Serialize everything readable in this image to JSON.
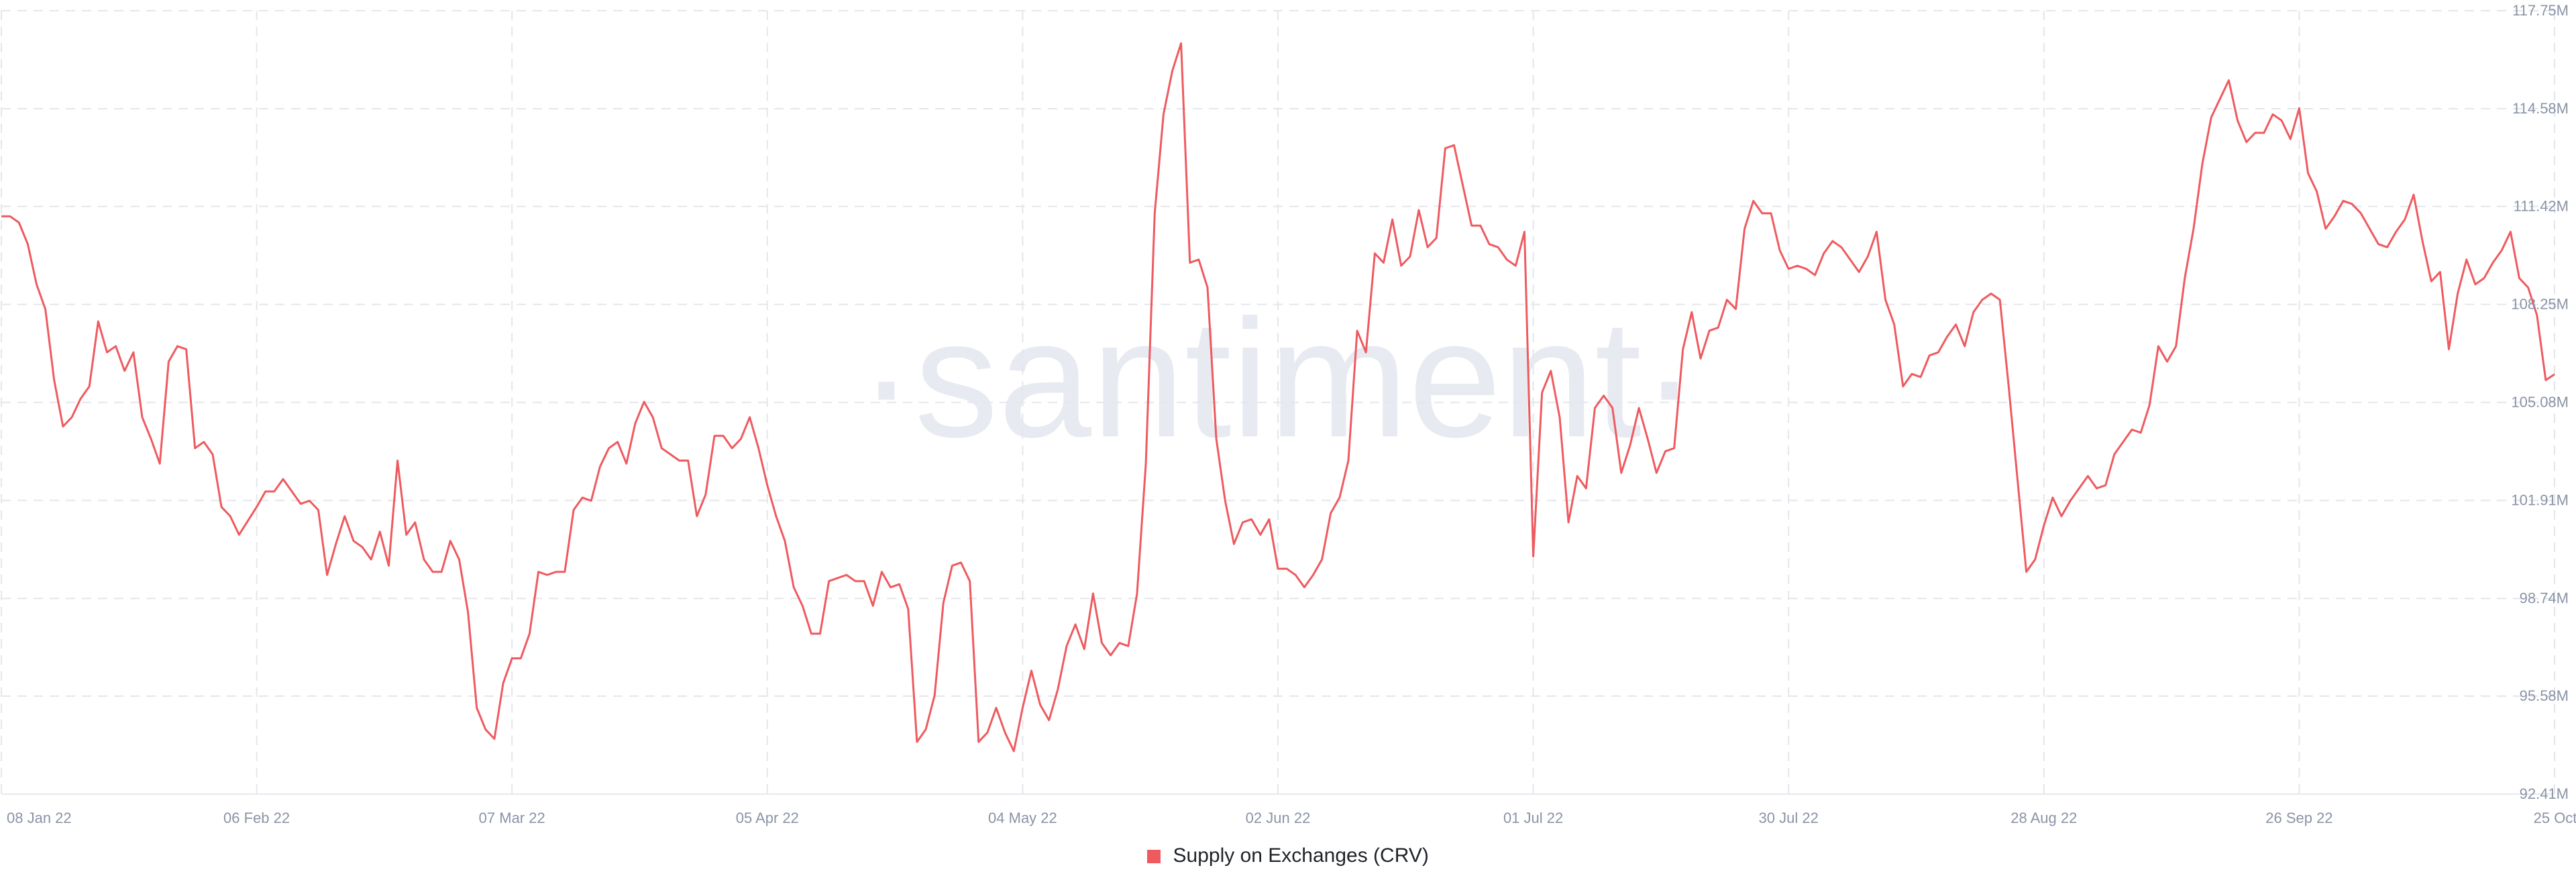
{
  "colors": {
    "series": "#ee5a5f",
    "grid": "#e3e6ec",
    "axis_text": "#8a93a6",
    "watermark": "#e8eaf2"
  },
  "watermark": "·santiment·",
  "chart_data": {
    "type": "line",
    "title": "",
    "xlabel": "",
    "ylabel": "",
    "ylim": [
      92.41,
      117.75
    ],
    "y_ticks": [
      92.41,
      95.58,
      98.74,
      101.91,
      105.08,
      108.25,
      111.42,
      114.58,
      117.75
    ],
    "y_tick_labels": [
      "92.41M",
      "95.58M",
      "98.74M",
      "101.91M",
      "105.08M",
      "108.25M",
      "111.42M",
      "114.58M",
      "117.75M"
    ],
    "x_start": "2022-01-08",
    "x_end": "2022-10-25",
    "x_ticks": [
      "2022-01-08",
      "2022-02-06",
      "2022-03-07",
      "2022-04-05",
      "2022-05-04",
      "2022-06-02",
      "2022-07-01",
      "2022-07-30",
      "2022-08-28",
      "2022-09-26",
      "2022-10-25"
    ],
    "x_tick_labels": [
      "08 Jan 22",
      "06 Feb 22",
      "07 Mar 22",
      "05 Apr 22",
      "04 May 22",
      "02 Jun 22",
      "01 Jul 22",
      "30 Jul 22",
      "28 Aug 22",
      "26 Sep 22",
      "25 Oct 22"
    ],
    "grid": true,
    "legend_position": "bottom-center",
    "last_value_label": "105.99M",
    "series": [
      {
        "name": "Supply on Exchanges (CRV)",
        "x": [
          "2022-01-08",
          "2022-01-09",
          "2022-01-10",
          "2022-01-11",
          "2022-01-12",
          "2022-01-13",
          "2022-01-14",
          "2022-01-15",
          "2022-01-16",
          "2022-01-17",
          "2022-01-18",
          "2022-01-19",
          "2022-01-20",
          "2022-01-21",
          "2022-01-22",
          "2022-01-23",
          "2022-01-24",
          "2022-01-25",
          "2022-01-26",
          "2022-01-27",
          "2022-01-28",
          "2022-01-29",
          "2022-01-30",
          "2022-01-31",
          "2022-02-01",
          "2022-02-02",
          "2022-02-03",
          "2022-02-04",
          "2022-02-06",
          "2022-02-07",
          "2022-02-08",
          "2022-02-09",
          "2022-02-10",
          "2022-02-11",
          "2022-02-12",
          "2022-02-13",
          "2022-02-14",
          "2022-02-15",
          "2022-02-16",
          "2022-02-17",
          "2022-02-18",
          "2022-02-19",
          "2022-02-20",
          "2022-02-21",
          "2022-02-22",
          "2022-02-23",
          "2022-02-24",
          "2022-02-25",
          "2022-02-26",
          "2022-02-27",
          "2022-02-28",
          "2022-03-01",
          "2022-03-02",
          "2022-03-03",
          "2022-03-04",
          "2022-03-05",
          "2022-03-06",
          "2022-03-07",
          "2022-03-08",
          "2022-03-09",
          "2022-03-10",
          "2022-03-11",
          "2022-03-12",
          "2022-03-13",
          "2022-03-14",
          "2022-03-15",
          "2022-03-16",
          "2022-03-17",
          "2022-03-18",
          "2022-03-19",
          "2022-03-20",
          "2022-03-21",
          "2022-03-22",
          "2022-03-23",
          "2022-03-24",
          "2022-03-25",
          "2022-03-26",
          "2022-03-27",
          "2022-03-28",
          "2022-03-29",
          "2022-03-30",
          "2022-03-31",
          "2022-04-01",
          "2022-04-02",
          "2022-04-03",
          "2022-04-04",
          "2022-04-05",
          "2022-04-06",
          "2022-04-07",
          "2022-04-08",
          "2022-04-09",
          "2022-04-10",
          "2022-04-11",
          "2022-04-12",
          "2022-04-13",
          "2022-04-14",
          "2022-04-15",
          "2022-04-16",
          "2022-04-17",
          "2022-04-18",
          "2022-04-19",
          "2022-04-20",
          "2022-04-21",
          "2022-04-22",
          "2022-04-23",
          "2022-04-24",
          "2022-04-25",
          "2022-04-26",
          "2022-04-27",
          "2022-04-28",
          "2022-04-29",
          "2022-04-30",
          "2022-05-01",
          "2022-05-02",
          "2022-05-03",
          "2022-05-04",
          "2022-05-05",
          "2022-05-06",
          "2022-05-07",
          "2022-05-08",
          "2022-05-09",
          "2022-05-10",
          "2022-05-11",
          "2022-05-12",
          "2022-05-13",
          "2022-05-14",
          "2022-05-15",
          "2022-05-16",
          "2022-05-17",
          "2022-05-18",
          "2022-05-19",
          "2022-05-20",
          "2022-05-21",
          "2022-05-22",
          "2022-05-23",
          "2022-05-24",
          "2022-05-25",
          "2022-05-26",
          "2022-05-27",
          "2022-05-28",
          "2022-05-29",
          "2022-05-30",
          "2022-05-31",
          "2022-06-01",
          "2022-06-02",
          "2022-06-03",
          "2022-06-04",
          "2022-06-05",
          "2022-06-06",
          "2022-06-07",
          "2022-06-08",
          "2022-06-09",
          "2022-06-10",
          "2022-06-11",
          "2022-06-12",
          "2022-06-13",
          "2022-06-14",
          "2022-06-15",
          "2022-06-16",
          "2022-06-17",
          "2022-06-18",
          "2022-06-19",
          "2022-06-20",
          "2022-06-21",
          "2022-06-22",
          "2022-06-23",
          "2022-06-24",
          "2022-06-25",
          "2022-06-26",
          "2022-06-27",
          "2022-06-28",
          "2022-06-29",
          "2022-06-30",
          "2022-07-01",
          "2022-07-02",
          "2022-07-03",
          "2022-07-04",
          "2022-07-05",
          "2022-07-06",
          "2022-07-07",
          "2022-07-08",
          "2022-07-09",
          "2022-07-10",
          "2022-07-11",
          "2022-07-12",
          "2022-07-13",
          "2022-07-14",
          "2022-07-15",
          "2022-07-16",
          "2022-07-17",
          "2022-07-18",
          "2022-07-19",
          "2022-07-20",
          "2022-07-21",
          "2022-07-22",
          "2022-07-23",
          "2022-07-24",
          "2022-07-25",
          "2022-07-26",
          "2022-07-27",
          "2022-07-28",
          "2022-07-29",
          "2022-07-30",
          "2022-07-31",
          "2022-08-01",
          "2022-08-02",
          "2022-08-03",
          "2022-08-04",
          "2022-08-05",
          "2022-08-06",
          "2022-08-07",
          "2022-08-08",
          "2022-08-09",
          "2022-08-10",
          "2022-08-11",
          "2022-08-12",
          "2022-08-13",
          "2022-08-14",
          "2022-08-15",
          "2022-08-16",
          "2022-08-17",
          "2022-08-18",
          "2022-08-19",
          "2022-08-20",
          "2022-08-21",
          "2022-08-22",
          "2022-08-23",
          "2022-08-24",
          "2022-08-25",
          "2022-08-26",
          "2022-08-27",
          "2022-08-28",
          "2022-08-29",
          "2022-08-30",
          "2022-08-31",
          "2022-09-01",
          "2022-09-02",
          "2022-09-03",
          "2022-09-04",
          "2022-09-05",
          "2022-09-06",
          "2022-09-07",
          "2022-09-08",
          "2022-09-09",
          "2022-09-10",
          "2022-09-11",
          "2022-09-12",
          "2022-09-13",
          "2022-09-14",
          "2022-09-15",
          "2022-09-16",
          "2022-09-17",
          "2022-09-18",
          "2022-09-19",
          "2022-09-20",
          "2022-09-21",
          "2022-09-22",
          "2022-09-23",
          "2022-09-24",
          "2022-09-25",
          "2022-09-26",
          "2022-09-27",
          "2022-09-28",
          "2022-09-29",
          "2022-09-30",
          "2022-10-01",
          "2022-10-02",
          "2022-10-03",
          "2022-10-04",
          "2022-10-05",
          "2022-10-06",
          "2022-10-07",
          "2022-10-08",
          "2022-10-09",
          "2022-10-10",
          "2022-10-11",
          "2022-10-12",
          "2022-10-13",
          "2022-10-14",
          "2022-10-15",
          "2022-10-16",
          "2022-10-17",
          "2022-10-18",
          "2022-10-19",
          "2022-10-20",
          "2022-10-21",
          "2022-10-22",
          "2022-10-23",
          "2022-10-24",
          "2022-10-25"
        ],
        "y": [
          111.1,
          111.1,
          110.9,
          110.2,
          108.9,
          108.1,
          105.8,
          104.3,
          104.6,
          105.2,
          105.6,
          107.7,
          106.7,
          106.9,
          106.1,
          106.7,
          104.6,
          103.9,
          103.1,
          106.4,
          106.9,
          106.8,
          103.6,
          103.8,
          103.4,
          101.7,
          101.4,
          100.8,
          101.7,
          102.2,
          102.2,
          102.6,
          102.2,
          101.8,
          101.9,
          101.6,
          99.5,
          100.5,
          101.4,
          100.6,
          100.4,
          100.0,
          100.9,
          99.8,
          103.2,
          100.8,
          101.2,
          100.0,
          99.6,
          99.6,
          100.6,
          100.0,
          98.3,
          95.2,
          94.5,
          94.2,
          96.0,
          96.8,
          96.8,
          97.6,
          99.6,
          99.5,
          99.6,
          99.6,
          101.6,
          102.0,
          101.9,
          103.0,
          103.6,
          103.8,
          103.1,
          104.4,
          105.1,
          104.6,
          103.6,
          103.4,
          103.2,
          103.2,
          101.4,
          102.1,
          104.0,
          104.0,
          103.6,
          103.9,
          104.6,
          103.6,
          102.4,
          101.4,
          100.6,
          99.1,
          98.5,
          97.6,
          97.6,
          99.3,
          99.4,
          99.5,
          99.3,
          99.3,
          98.5,
          99.6,
          99.1,
          99.2,
          98.4,
          94.1,
          94.5,
          95.6,
          98.6,
          99.8,
          99.9,
          99.3,
          94.1,
          94.4,
          95.2,
          94.4,
          93.8,
          95.2,
          96.4,
          95.3,
          94.8,
          95.8,
          97.2,
          97.9,
          97.1,
          98.9,
          97.3,
          96.9,
          97.3,
          97.2,
          98.9,
          103.1,
          111.2,
          114.4,
          115.8,
          116.7,
          109.6,
          109.7,
          108.8,
          103.9,
          101.9,
          100.5,
          101.2,
          101.3,
          100.8,
          101.3,
          99.7,
          99.7,
          99.5,
          99.1,
          99.5,
          100.0,
          101.5,
          102.0,
          103.2,
          107.4,
          106.7,
          109.9,
          109.6,
          111.0,
          109.5,
          109.8,
          111.3,
          110.1,
          110.4,
          113.3,
          113.4,
          112.1,
          110.8,
          110.8,
          110.2,
          110.1,
          109.7,
          109.5,
          110.6,
          100.1,
          105.4,
          106.1,
          104.6,
          101.2,
          102.7,
          102.3,
          104.9,
          105.3,
          104.9,
          102.8,
          103.7,
          104.9,
          103.9,
          102.8,
          103.5,
          103.6,
          106.8,
          108.0,
          106.5,
          107.4,
          107.5,
          108.4,
          108.1,
          110.7,
          111.6,
          111.2,
          111.2,
          110.0,
          109.4,
          109.5,
          109.4,
          109.2,
          109.9,
          110.3,
          110.1,
          109.7,
          109.3,
          109.8,
          110.6,
          108.4,
          107.6,
          105.6,
          106.0,
          105.9,
          106.6,
          106.7,
          107.2,
          107.6,
          106.9,
          108.0,
          108.4,
          108.6,
          108.4,
          105.6,
          102.6,
          99.6,
          100.0,
          101.1,
          102.0,
          101.4,
          101.9,
          102.3,
          102.7,
          102.3,
          102.4,
          103.4,
          103.8,
          104.2,
          104.1,
          105.0,
          106.9,
          106.4,
          106.9,
          109.1,
          110.7,
          112.8,
          114.3,
          114.9,
          115.5,
          114.2,
          113.5,
          113.8,
          113.8,
          114.4,
          114.2,
          113.6,
          114.6,
          112.5,
          111.9,
          110.7,
          111.1,
          111.6,
          111.5,
          111.2,
          110.7,
          110.2,
          110.1,
          110.6,
          111.0,
          111.8,
          110.3,
          109.0,
          109.3,
          106.8,
          108.6,
          109.7,
          108.9,
          109.1,
          109.6,
          110.0,
          110.6,
          109.1,
          108.8,
          107.9,
          105.8,
          105.99
        ]
      }
    ]
  },
  "legend": {
    "label": "Supply on Exchanges (CRV)"
  }
}
